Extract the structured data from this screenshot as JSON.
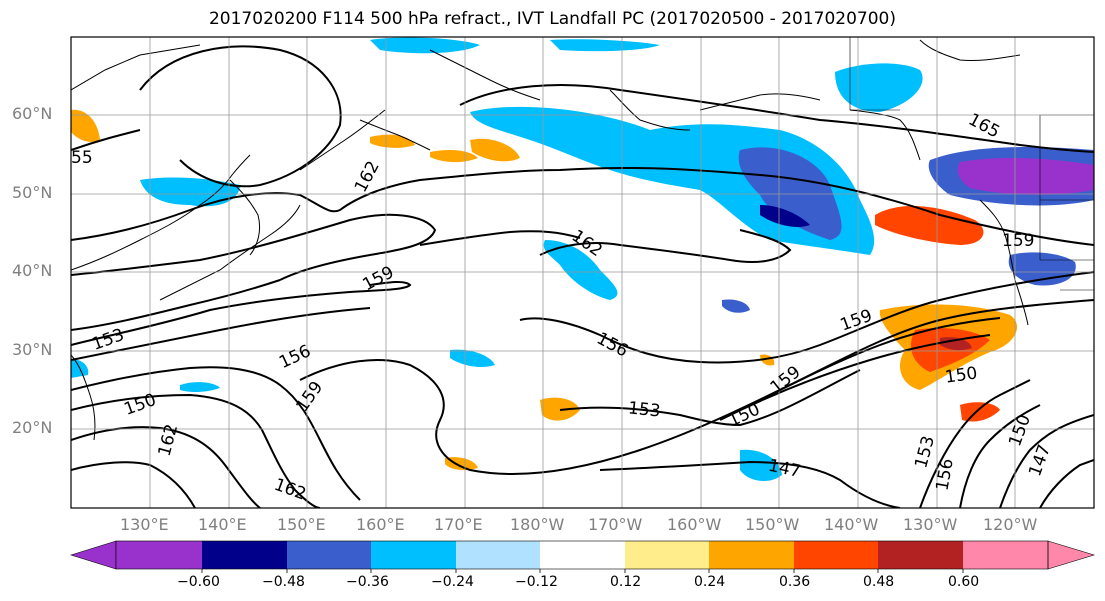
{
  "title": "2017020200 F114 500 hPa refract., IVT Landfall PC (2017020500 - 2017020700)",
  "map": {
    "lat_ticks": [
      "60°N",
      "50°N",
      "40°N",
      "30°N",
      "20°N"
    ],
    "lon_ticks": [
      "130°E",
      "140°E",
      "150°E",
      "160°E",
      "170°E",
      "180°W",
      "170°W",
      "160°W",
      "150°W",
      "140°W",
      "130°W",
      "120°W"
    ],
    "contour_labels": [
      "165",
      "55",
      "162",
      "159",
      "162",
      "153",
      "156",
      "150",
      "159",
      "162",
      "156",
      "153",
      "159",
      "159",
      "150",
      "159",
      "150",
      "147",
      "150",
      "153",
      "156",
      "147",
      "162"
    ],
    "lon_range": [
      "120°E",
      "110°W"
    ],
    "lat_range": [
      "10°N",
      "70°N"
    ],
    "grid": true
  },
  "colorbar": {
    "ticks": [
      "−0.60",
      "−0.48",
      "−0.36",
      "−0.24",
      "−0.12",
      "0.12",
      "0.24",
      "0.36",
      "0.48",
      "0.60"
    ],
    "colors": [
      "#9932cc",
      "#00008b",
      "#3a5fcd",
      "#00bfff",
      "#b0e2ff",
      "#ffffff",
      "#ffec8b",
      "#ffa500",
      "#ff4500",
      "#b22222",
      "#ff88aa"
    ]
  }
}
